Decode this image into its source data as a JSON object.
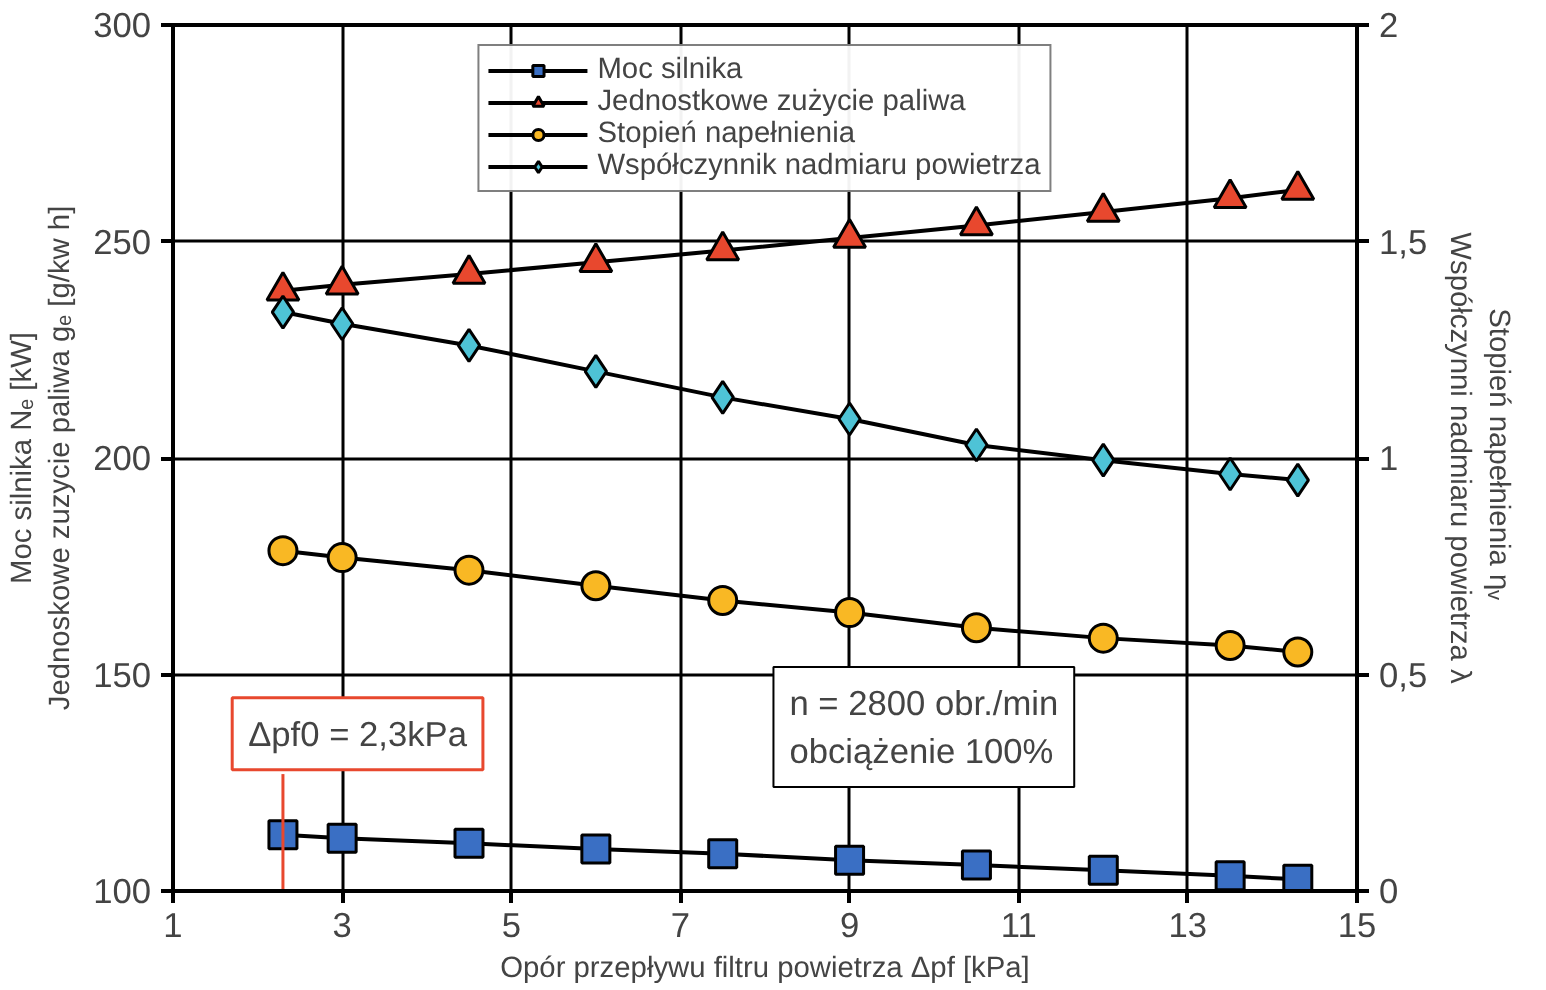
{
  "chart_data": {
    "type": "line",
    "x": [
      2.3,
      3,
      4.5,
      6,
      7.5,
      9,
      10.5,
      12,
      13.5,
      14.3
    ],
    "series": [
      {
        "name": "Moc silnika",
        "color": "#3a6fc4",
        "marker": "square",
        "values": [
          113.0,
          112.2,
          111.0,
          109.7,
          108.6,
          107.1,
          106.0,
          104.8,
          103.5,
          102.7
        ]
      },
      {
        "name": "Jednostkowe zużycie paliwa",
        "color": "#e8482e",
        "marker": "triangle",
        "values": [
          238.6,
          240.0,
          242.5,
          245.2,
          247.9,
          250.8,
          253.7,
          256.8,
          260.0,
          261.9
        ]
      },
      {
        "name": "Stopień napełnienia",
        "color": "#f9b824",
        "marker": "circle",
        "axis": "y2",
        "values": [
          0.786,
          0.77,
          0.741,
          0.705,
          0.671,
          0.643,
          0.608,
          0.584,
          0.567,
          0.552
        ]
      },
      {
        "name": "Współczynnik nadmiaru powietrza",
        "color": "#4ec3d6",
        "marker": "diamond",
        "axis": "y2",
        "values": [
          1.337,
          1.31,
          1.26,
          1.2,
          1.14,
          1.09,
          1.03,
          0.995,
          0.963,
          0.949
        ]
      }
    ],
    "xlabel": "Opór przepływu filtru powietrza Δpf [kPa]",
    "ylabel": "Moc silnika Nₑ [kW]\nJednoskowe zuzycie paliwa gₑ [g/kw h]",
    "y2label": "Stopień napełnienia  ηᵥ\nWspółczynni nadmiaru powietrza λ",
    "xlim": [
      1,
      15
    ],
    "xticks": [
      1,
      3,
      5,
      7,
      9,
      11,
      13,
      15
    ],
    "ylim": [
      100,
      300
    ],
    "yticks": [
      100,
      150,
      200,
      250,
      300
    ],
    "y2lim": [
      0,
      2
    ],
    "y2ticks": [
      0,
      {
        "value": 0.5,
        "label": "0,5"
      },
      1,
      {
        "value": 1.5,
        "label": "1,5"
      },
      2
    ],
    "ref_lines": [
      {
        "axis": "x",
        "value": 2.3,
        "label": "Δpf0 = 2,3kPa",
        "color": "#e8482e"
      }
    ],
    "annotations": [
      "n = 2800 obr./min\nobciążenie 100%"
    ],
    "grid": true,
    "legend": "top",
    "line_style": "solid"
  }
}
